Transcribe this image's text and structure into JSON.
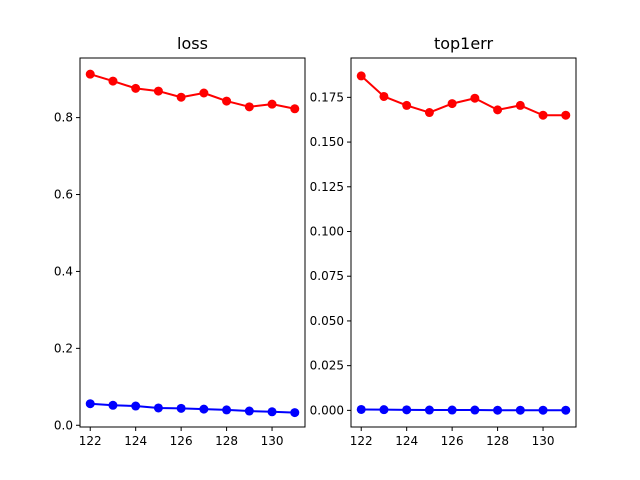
{
  "chart_data": [
    {
      "type": "line",
      "title": "loss",
      "x": [
        122,
        123,
        124,
        125,
        126,
        127,
        128,
        129,
        130,
        131
      ],
      "xticks": [
        122,
        124,
        126,
        128,
        130
      ],
      "xlim": [
        121.55,
        131.45
      ],
      "ylim": [
        -0.0045,
        0.955
      ],
      "yticks": [
        0.0,
        0.2,
        0.4,
        0.6,
        0.8
      ],
      "ytick_labels": [
        "0.0",
        "0.2",
        "0.4",
        "0.6",
        "0.8"
      ],
      "grid": false,
      "series": [
        {
          "color": "#ff0000",
          "values": [
            0.913,
            0.895,
            0.876,
            0.869,
            0.853,
            0.864,
            0.843,
            0.828,
            0.835,
            0.823
          ]
        },
        {
          "color": "#0000ff",
          "values": [
            0.056,
            0.052,
            0.05,
            0.045,
            0.044,
            0.042,
            0.04,
            0.037,
            0.035,
            0.033
          ]
        }
      ]
    },
    {
      "type": "line",
      "title": "top1err",
      "x": [
        122,
        123,
        124,
        125,
        126,
        127,
        128,
        129,
        130,
        131
      ],
      "xticks": [
        122,
        124,
        126,
        128,
        130
      ],
      "xlim": [
        121.55,
        131.45
      ],
      "ylim": [
        -0.0093,
        0.197
      ],
      "yticks": [
        0.0,
        0.025,
        0.05,
        0.075,
        0.1,
        0.125,
        0.15,
        0.175
      ],
      "ytick_labels": [
        "0.000",
        "0.025",
        "0.050",
        "0.075",
        "0.100",
        "0.125",
        "0.150",
        "0.175"
      ],
      "grid": false,
      "series": [
        {
          "color": "#ff0000",
          "values": [
            0.187,
            0.1755,
            0.1705,
            0.1665,
            0.1715,
            0.1745,
            0.168,
            0.1705,
            0.165,
            0.165
          ]
        },
        {
          "color": "#0000ff",
          "values": [
            0.0005,
            0.0004,
            0.0003,
            0.0002,
            0.0002,
            0.0002,
            0.0001,
            0.0001,
            0.0001,
            0.0001
          ]
        }
      ]
    }
  ]
}
